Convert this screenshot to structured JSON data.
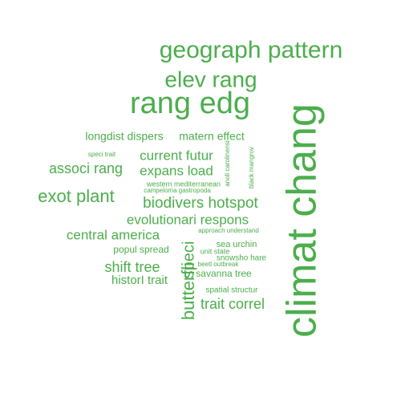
{
  "color": "#4cae4c",
  "words": [
    {
      "text": "climat chang",
      "rotated": true
    },
    {
      "text": "rang edg",
      "rotated": false
    },
    {
      "text": "geograph pattern",
      "rotated": false
    },
    {
      "text": "elev rang",
      "rotated": false
    },
    {
      "text": "exot plant",
      "rotated": false
    },
    {
      "text": "biodivers hotspot",
      "rotated": false
    },
    {
      "text": "butterfli",
      "rotated": true
    },
    {
      "text": "speci",
      "rotated": true
    },
    {
      "text": "associ rang",
      "rotated": false
    },
    {
      "text": "expans load",
      "rotated": false
    },
    {
      "text": "current futur",
      "rotated": false
    },
    {
      "text": "evolutionari respons",
      "rotated": false
    },
    {
      "text": "central america",
      "rotated": false
    },
    {
      "text": "shift tree",
      "rotated": false
    },
    {
      "text": "trait correl",
      "rotated": false
    },
    {
      "text": "historI trait",
      "rotated": false
    },
    {
      "text": "longdist dispers",
      "rotated": false
    },
    {
      "text": "matern effect",
      "rotated": false
    },
    {
      "text": "popul spread",
      "rotated": false
    },
    {
      "text": "savanna tree",
      "rotated": false
    },
    {
      "text": "sea urchin",
      "rotated": false
    },
    {
      "text": "snowsho hare",
      "rotated": false
    },
    {
      "text": "unit state",
      "rotated": false
    },
    {
      "text": "spatial structur",
      "rotated": false
    },
    {
      "text": "speci trait",
      "rotated": false
    },
    {
      "text": "western mediterranean",
      "rotated": false
    },
    {
      "text": "campeloma gastropoda",
      "rotated": false
    },
    {
      "text": "approach understand",
      "rotated": false
    },
    {
      "text": "beetl outbreak",
      "rotated": false
    },
    {
      "text": "anoli carolinensi",
      "rotated": true
    },
    {
      "text": "black mangrov",
      "rotated": true
    }
  ]
}
